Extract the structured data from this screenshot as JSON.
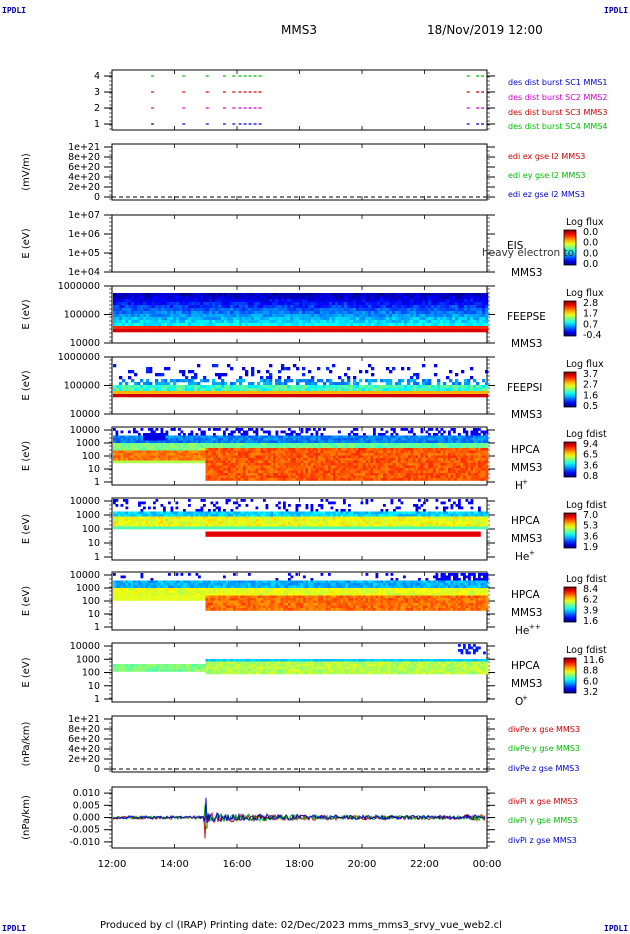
{
  "header": {
    "corner_label": "IPDLI",
    "title": "MMS3",
    "date": "18/Nov/2019 12:00"
  },
  "footer": {
    "text": "Produced by cl (IRAP)   Printing date: 02/Dec/2023   mms_mms3_srvy_vue_web2.cl"
  },
  "colors": {
    "red": "#cc0000",
    "green": "#00bb00",
    "blue": "#0000cc",
    "magenta": "#cc00cc"
  },
  "chart_data": [
    {
      "id": "burst",
      "type": "scatter",
      "y_ticks": [
        "4",
        "3",
        "2",
        "1"
      ],
      "legend": [
        {
          "text": "des dist burst SC1 MMS1",
          "color": "#0000cc"
        },
        {
          "text": "des dist burst SC2 MMS2",
          "color": "#cc00cc"
        },
        {
          "text": "des dist burst SC3 MMS3",
          "color": "#cc0000"
        },
        {
          "text": "des dist burst SC4 MMS4",
          "color": "#00bb00"
        }
      ],
      "burst_intervals_hours": [
        [
          13.25,
          13.3
        ],
        [
          14.25,
          14.3
        ],
        [
          15.0,
          15.05
        ],
        [
          15.55,
          15.6
        ],
        [
          15.85,
          15.9
        ],
        [
          16.05,
          16.8
        ],
        [
          23.35,
          23.45
        ],
        [
          23.65,
          23.9
        ]
      ]
    },
    {
      "id": "edi",
      "type": "line",
      "ylabel": "(mV/m)",
      "y_ticks": [
        "1e+21",
        "8e+20",
        "6e+20",
        "4e+20",
        "2e+20",
        "0"
      ],
      "legend": [
        {
          "text": "edi ex gse l2 MMS3",
          "color": "#cc0000"
        },
        {
          "text": "edi ey gse l2 MMS3",
          "color": "#00bb00"
        },
        {
          "text": "edi ez gse l2 MMS3",
          "color": "#0000cc"
        }
      ]
    },
    {
      "id": "eis",
      "type": "heatmap",
      "ylabel": "E (eV)",
      "y_ticks": [
        "1e+07",
        "1e+06",
        "1e+05",
        "1e+04"
      ],
      "instrument": "EIS",
      "spacecraft": "MMS3",
      "overlay_text": "heavy electron to",
      "cbar_title": "Log flux",
      "cbar_ticks": [
        "0.0",
        "0.0",
        "0.0",
        "0.0"
      ]
    },
    {
      "id": "feepse",
      "type": "heatmap",
      "ylabel": "E (eV)",
      "y_ticks": [
        "1000000",
        "100000",
        "10000"
      ],
      "instrument": "FEEPSE",
      "spacecraft": "MMS3",
      "cbar_title": "Log flux",
      "cbar_ticks": [
        "2.8",
        "1.7",
        "0.7",
        "-0.4"
      ]
    },
    {
      "id": "feepsi",
      "type": "heatmap",
      "ylabel": "E (eV)",
      "y_ticks": [
        "1000000",
        "100000",
        "10000"
      ],
      "instrument": "FEEPSI",
      "spacecraft": "MMS3",
      "cbar_title": "Log flux",
      "cbar_ticks": [
        "3.7",
        "2.7",
        "1.6",
        "0.5"
      ]
    },
    {
      "id": "hpca_h",
      "type": "heatmap",
      "ylabel": "E (eV)",
      "y_ticks": [
        "10000",
        "1000",
        "100",
        "10",
        "1"
      ],
      "instrument": "HPCA",
      "spacecraft": "MMS3",
      "species": "H",
      "species_sup": "+",
      "cbar_title": "Log fdist",
      "cbar_ticks": [
        "9.4",
        "6.5",
        "3.6",
        "0.8"
      ]
    },
    {
      "id": "hpca_he",
      "type": "heatmap",
      "ylabel": "E (eV)",
      "y_ticks": [
        "10000",
        "1000",
        "100",
        "10",
        "1"
      ],
      "instrument": "HPCA",
      "spacecraft": "MMS3",
      "species": "He",
      "species_sup": "+",
      "cbar_title": "Log fdist",
      "cbar_ticks": [
        "7.0",
        "5.3",
        "3.6",
        "1.9"
      ]
    },
    {
      "id": "hpca_he2",
      "type": "heatmap",
      "ylabel": "E (eV)",
      "y_ticks": [
        "10000",
        "1000",
        "100",
        "10",
        "1"
      ],
      "instrument": "HPCA",
      "spacecraft": "MMS3",
      "species": "He",
      "species_sup": "++",
      "cbar_title": "Log fdist",
      "cbar_ticks": [
        "8.4",
        "6.2",
        "3.9",
        "1.6"
      ]
    },
    {
      "id": "hpca_o",
      "type": "heatmap",
      "ylabel": "E (eV)",
      "y_ticks": [
        "10000",
        "1000",
        "100",
        "10",
        "1"
      ],
      "instrument": "HPCA",
      "spacecraft": "MMS3",
      "species": "O",
      "species_sup": "+",
      "cbar_title": "Log fdist",
      "cbar_ticks": [
        "11.6",
        "8.8",
        "6.0",
        "3.2"
      ]
    },
    {
      "id": "divpe",
      "type": "line",
      "ylabel": "(nPa/km)",
      "y_ticks": [
        "1e+21",
        "8e+20",
        "6e+20",
        "4e+20",
        "2e+20",
        "0"
      ],
      "legend": [
        {
          "text": "divPe x gse MMS3",
          "color": "#cc0000"
        },
        {
          "text": "divPe y gse MMS3",
          "color": "#00bb00"
        },
        {
          "text": "divPe z gse MMS3",
          "color": "#0000cc"
        }
      ]
    },
    {
      "id": "divpi",
      "type": "line",
      "ylabel": "(nPa/km)",
      "y_ticks": [
        "0.010",
        "0.005",
        "0.000",
        "-0.005",
        "-0.010"
      ],
      "ylim": [
        -0.0125,
        0.0125
      ],
      "legend": [
        {
          "text": "divPi x gse MMS3",
          "color": "#cc0000"
        },
        {
          "text": "divPi y gse MMS3",
          "color": "#00bb00"
        },
        {
          "text": "divPi z gse MMS3",
          "color": "#0000cc"
        }
      ],
      "x_ticks": [
        "12:00",
        "14:00",
        "16:00",
        "18:00",
        "20:00",
        "22:00",
        "00:00"
      ],
      "xlim_hours": [
        12,
        24
      ]
    }
  ]
}
